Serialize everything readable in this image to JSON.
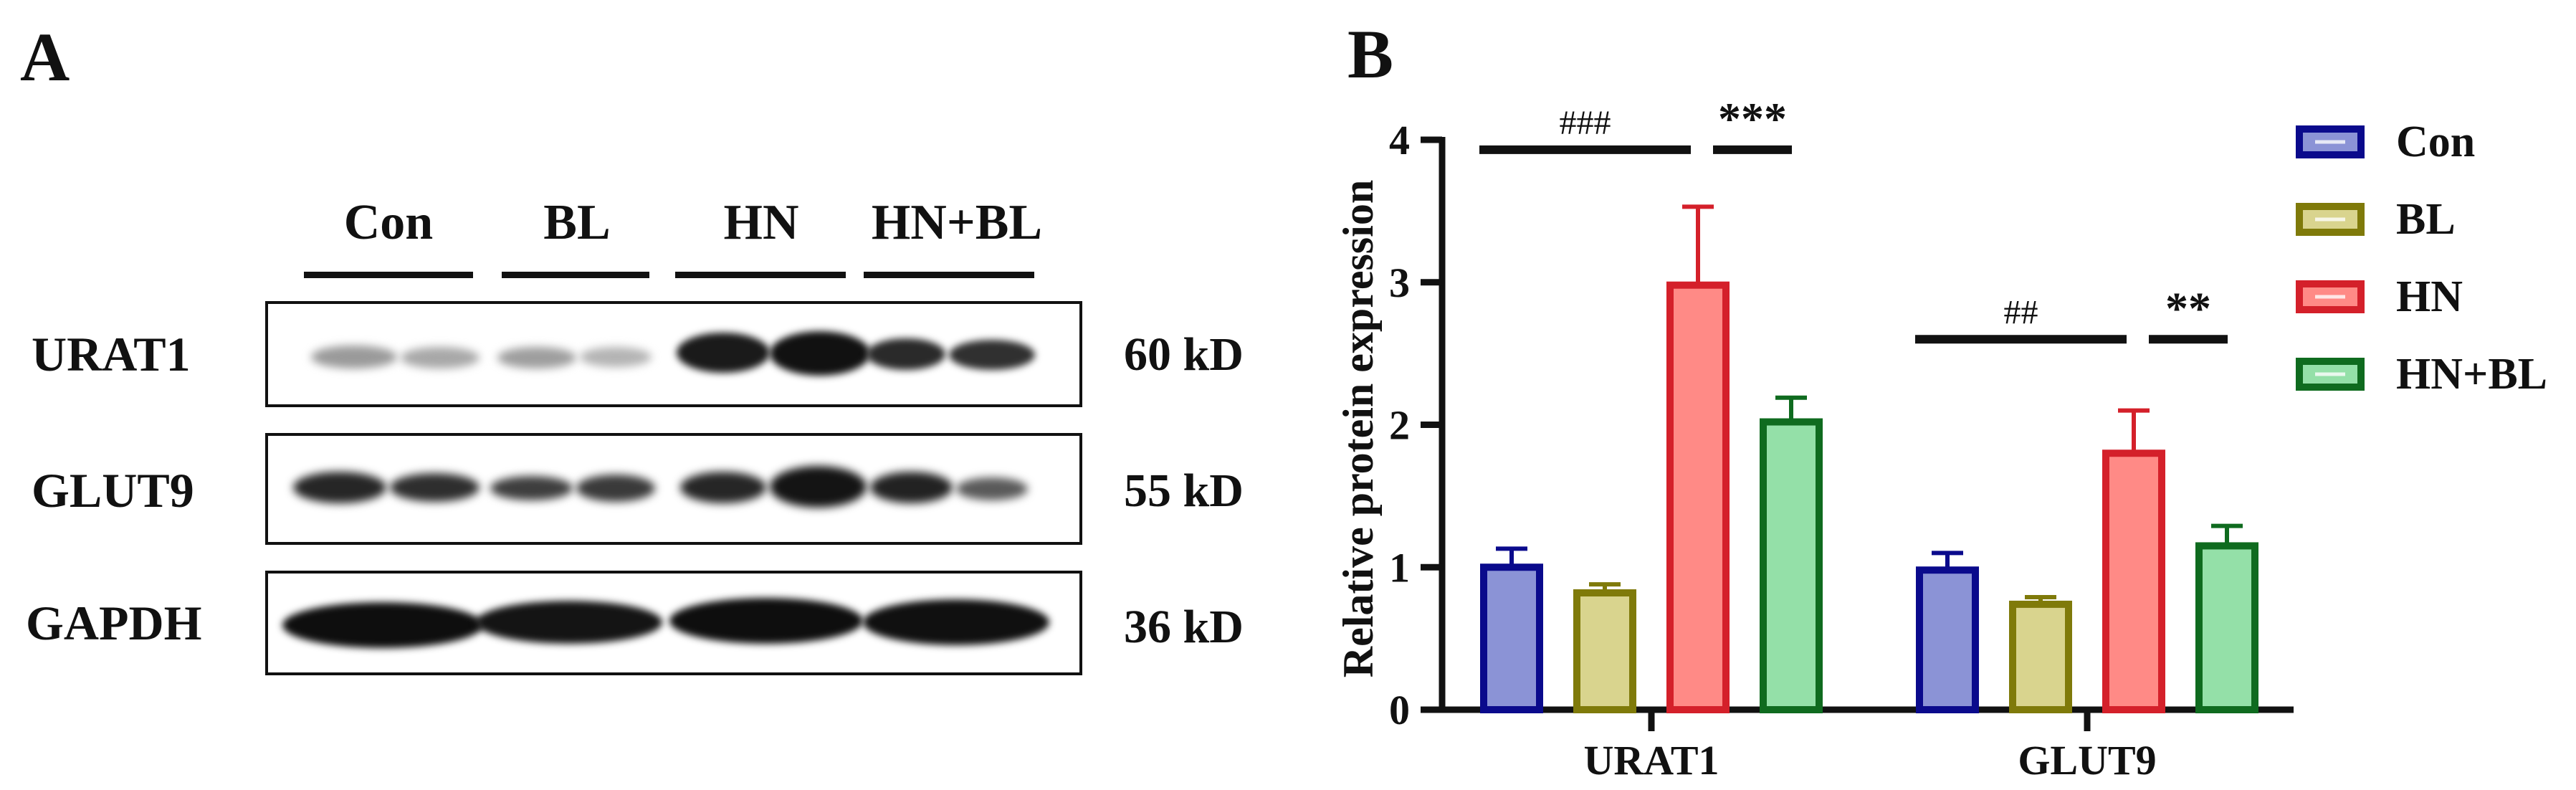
{
  "panel_a": {
    "letter": "A",
    "lanes": [
      "Con",
      "BL",
      "HN",
      "HN+BL"
    ],
    "rows": [
      {
        "label": "URAT1",
        "kd": "60 kD"
      },
      {
        "label": "GLUT9",
        "kd": "55 kD"
      },
      {
        "label": "GAPDH",
        "kd": "36 kD"
      }
    ]
  },
  "panel_b": {
    "letter": "B"
  },
  "chart_data": {
    "type": "bar",
    "title": "",
    "xlabel": "",
    "ylabel": "Relative protein expression",
    "ylim": [
      0,
      4
    ],
    "yticks": [
      "0",
      "1",
      "2",
      "3",
      "4"
    ],
    "categories": [
      "URAT1",
      "GLUT9"
    ],
    "legend_position": "right",
    "series": [
      {
        "name": "Con",
        "values": [
          1.0,
          0.98
        ],
        "errors": [
          0.13,
          0.12
        ],
        "fill": "#8b93d6",
        "stroke": "#0a0a8c"
      },
      {
        "name": "BL",
        "values": [
          0.82,
          0.74
        ],
        "errors": [
          0.06,
          0.05
        ],
        "fill": "#d9d48e",
        "stroke": "#7f7a0a"
      },
      {
        "name": "HN",
        "values": [
          2.98,
          1.8
        ],
        "errors": [
          0.55,
          0.3
        ],
        "fill": "#ff8a86",
        "stroke": "#d4202a"
      },
      {
        "name": "HN+BL",
        "values": [
          2.02,
          1.15
        ],
        "errors": [
          0.17,
          0.14
        ],
        "fill": "#94e0a8",
        "stroke": "#0f6b1f"
      }
    ],
    "annotations": [
      {
        "category": "URAT1",
        "text": "###",
        "from": "Con",
        "to": "HN",
        "y": 3.93
      },
      {
        "category": "URAT1",
        "text": "***",
        "from": "HN",
        "to": "HN+BL",
        "y": 3.93
      },
      {
        "category": "GLUT9",
        "text": "##",
        "from": "Con",
        "to": "HN",
        "y": 2.6
      },
      {
        "category": "GLUT9",
        "text": "**",
        "from": "HN",
        "to": "HN+BL",
        "y": 2.6
      }
    ]
  }
}
